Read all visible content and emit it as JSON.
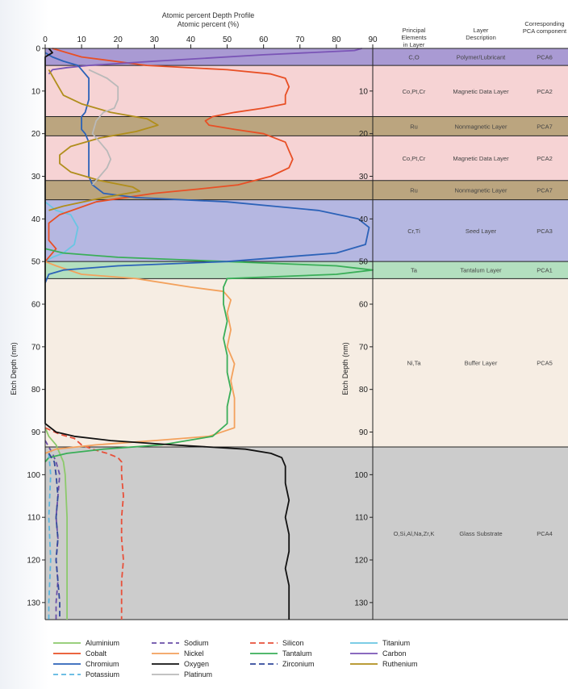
{
  "chart_data": {
    "type": "line",
    "title": "Atomic percent Depth Profile",
    "xlabel": "Atomic percent (%)",
    "ylabel": "Etch Depth (nm)",
    "xlim": [
      0,
      90
    ],
    "ylim": [
      0,
      134
    ],
    "x_ticks": [
      "0",
      "10",
      "20",
      "30",
      "40",
      "50",
      "60",
      "70",
      "80",
      "90"
    ],
    "y_ticks": [
      "0",
      "10",
      "20",
      "30",
      "40",
      "50",
      "60",
      "70",
      "80",
      "90",
      "100",
      "110",
      "120",
      "130"
    ],
    "y_ticks_right": [
      "10",
      "20",
      "30",
      "40",
      "50",
      "60",
      "70",
      "80",
      "90",
      "100",
      "110",
      "120",
      "130"
    ],
    "table_headers": {
      "elements": "Principal Elements in Layer",
      "description": "Layer Description",
      "pca": "Corresponding PCA component"
    },
    "layers": [
      {
        "top": 0,
        "bottom": 4,
        "elements": "C,O",
        "description": "Polymer/Lubricant",
        "pca": "PCA6",
        "color": "#a99ad3"
      },
      {
        "top": 4,
        "bottom": 16,
        "elements": "Co,Pt,Cr",
        "description": "Magnetic Data Layer",
        "pca": "PCA2",
        "color": "#f6d3d4"
      },
      {
        "top": 16,
        "bottom": 20.5,
        "elements": "Ru",
        "description": "Nonmagnetic Layer",
        "pca": "PCA7",
        "color": "#bba57f"
      },
      {
        "top": 20.5,
        "bottom": 31,
        "elements": "Co,Pt,Cr",
        "description": "Magnetic Data Layer",
        "pca": "PCA2",
        "color": "#f6d3d4"
      },
      {
        "top": 31,
        "bottom": 35.5,
        "elements": "Ru",
        "description": "Nonmagnetic Layer",
        "pca": "PCA7",
        "color": "#bba57f"
      },
      {
        "top": 35.5,
        "bottom": 50,
        "elements": "Cr,Ti",
        "description": "Seed Layer",
        "pca": "PCA3",
        "color": "#b5b7e1"
      },
      {
        "top": 50,
        "bottom": 54,
        "elements": "Ta",
        "description": "Tantalum Layer",
        "pca": "PCA1",
        "color": "#b3dfbf"
      },
      {
        "top": 54,
        "bottom": 93.5,
        "elements": "Ni,Ta",
        "description": "Buffer Layer",
        "pca": "PCA5",
        "color": "#f6ede3"
      },
      {
        "top": 93.5,
        "bottom": 134,
        "elements": "O,Si,Al,Na,Zr,K",
        "description": "Glass Substrate",
        "pca": "PCA4",
        "color": "#cccccc"
      }
    ],
    "series": [
      {
        "name": "Aluminium",
        "color": "#8cc96b",
        "dash": "",
        "points": [
          [
            0,
            89
          ],
          [
            1,
            91
          ],
          [
            3,
            93
          ],
          [
            4,
            95
          ],
          [
            5,
            97
          ],
          [
            5.5,
            100
          ],
          [
            6,
            110
          ],
          [
            6,
            120
          ],
          [
            6,
            134
          ]
        ]
      },
      {
        "name": "Sodium",
        "color": "#6a4fa8",
        "dash": "6 4",
        "points": [
          [
            0,
            92
          ],
          [
            2,
            95
          ],
          [
            3,
            97
          ],
          [
            4,
            100
          ],
          [
            3.5,
            105
          ],
          [
            3,
            110
          ],
          [
            3.5,
            115
          ],
          [
            3,
            120
          ],
          [
            3.5,
            125
          ],
          [
            3,
            130
          ],
          [
            3,
            134
          ]
        ]
      },
      {
        "name": "Silicon",
        "color": "#e8503a",
        "dash": "7 4",
        "points": [
          [
            0,
            89
          ],
          [
            4,
            90.5
          ],
          [
            8,
            91.5
          ],
          [
            10,
            93
          ],
          [
            13,
            94
          ],
          [
            17,
            95
          ],
          [
            20,
            96
          ],
          [
            21,
            97
          ],
          [
            21,
            100
          ],
          [
            21.5,
            105
          ],
          [
            21,
            110
          ],
          [
            21,
            115
          ],
          [
            21.5,
            120
          ],
          [
            21,
            125
          ],
          [
            21,
            130
          ],
          [
            21,
            134
          ]
        ]
      },
      {
        "name": "Titanium",
        "color": "#69c6e3",
        "dash": "",
        "points": [
          [
            0,
            36
          ],
          [
            3,
            38
          ],
          [
            7,
            39
          ],
          [
            9,
            42
          ],
          [
            8,
            46
          ],
          [
            5,
            48
          ],
          [
            2,
            49
          ],
          [
            0,
            50
          ]
        ]
      },
      {
        "name": "Cobalt",
        "color": "#e84f25",
        "dash": "",
        "points": [
          [
            2,
            0
          ],
          [
            10,
            2
          ],
          [
            28,
            4
          ],
          [
            50,
            5
          ],
          [
            62,
            6
          ],
          [
            66,
            7
          ],
          [
            67,
            9
          ],
          [
            66,
            11
          ],
          [
            66,
            13
          ],
          [
            60,
            14
          ],
          [
            52,
            15
          ],
          [
            46,
            16
          ],
          [
            44,
            17
          ],
          [
            45,
            18
          ],
          [
            52,
            19
          ],
          [
            60,
            20
          ],
          [
            66,
            22
          ],
          [
            67,
            24
          ],
          [
            68,
            26
          ],
          [
            67,
            28
          ],
          [
            62,
            30
          ],
          [
            53,
            32
          ],
          [
            42,
            33
          ],
          [
            30,
            34
          ],
          [
            14,
            36
          ],
          [
            4,
            39
          ],
          [
            1,
            41
          ],
          [
            1,
            45
          ],
          [
            3,
            47
          ],
          [
            0,
            50
          ]
        ]
      },
      {
        "name": "Nickel",
        "color": "#f3a15c",
        "dash": "",
        "points": [
          [
            0,
            50
          ],
          [
            3,
            51
          ],
          [
            10,
            53
          ],
          [
            25,
            54
          ],
          [
            40,
            56
          ],
          [
            49,
            57
          ],
          [
            51,
            59
          ],
          [
            50,
            62
          ],
          [
            51,
            66
          ],
          [
            50,
            70
          ],
          [
            52,
            74
          ],
          [
            51,
            78
          ],
          [
            52,
            82
          ],
          [
            52,
            86
          ],
          [
            52,
            89
          ],
          [
            45,
            91
          ],
          [
            30,
            92
          ],
          [
            14,
            93
          ],
          [
            3,
            94
          ],
          [
            0,
            95
          ]
        ]
      },
      {
        "name": "Tantalum",
        "color": "#3aae58",
        "dash": "",
        "points": [
          [
            0,
            47
          ],
          [
            5,
            48
          ],
          [
            20,
            49
          ],
          [
            50,
            50
          ],
          [
            80,
            51
          ],
          [
            90,
            52
          ],
          [
            80,
            53
          ],
          [
            50,
            54
          ],
          [
            49,
            56
          ],
          [
            49,
            60
          ],
          [
            50,
            64
          ],
          [
            49,
            68
          ],
          [
            50,
            72
          ],
          [
            50,
            76
          ],
          [
            51,
            80
          ],
          [
            50,
            84
          ],
          [
            50,
            88
          ],
          [
            46,
            91
          ],
          [
            32,
            93
          ],
          [
            16,
            94
          ],
          [
            6,
            95
          ],
          [
            1,
            96
          ],
          [
            0,
            97
          ]
        ]
      },
      {
        "name": "Carbon",
        "color": "#7a54b6",
        "dash": "",
        "points": [
          [
            87,
            0
          ],
          [
            85,
            0.5
          ],
          [
            60,
            1.5
          ],
          [
            30,
            3
          ],
          [
            12,
            4
          ],
          [
            6,
            4.5
          ],
          [
            2,
            5
          ],
          [
            1,
            6
          ]
        ]
      },
      {
        "name": "Chromium",
        "color": "#2c62b8",
        "dash": "",
        "points": [
          [
            0,
            1
          ],
          [
            2,
            2
          ],
          [
            5,
            3
          ],
          [
            9,
            4
          ],
          [
            12,
            7
          ],
          [
            12,
            12
          ],
          [
            11,
            15
          ],
          [
            10,
            16
          ],
          [
            10,
            19
          ],
          [
            11,
            20
          ],
          [
            12,
            22
          ],
          [
            12,
            26
          ],
          [
            12,
            30
          ],
          [
            13,
            32
          ],
          [
            16,
            34
          ],
          [
            25,
            35
          ],
          [
            50,
            36
          ],
          [
            75,
            38
          ],
          [
            86,
            40
          ],
          [
            89,
            42
          ],
          [
            88,
            46
          ],
          [
            80,
            48
          ],
          [
            50,
            50
          ],
          [
            20,
            51
          ],
          [
            5,
            52
          ],
          [
            1,
            53
          ],
          [
            0,
            55
          ]
        ]
      },
      {
        "name": "Ruthenium",
        "color": "#b08e1c",
        "dash": "",
        "points": [
          [
            1,
            5
          ],
          [
            3,
            8
          ],
          [
            5,
            11
          ],
          [
            10,
            13
          ],
          [
            18,
            15
          ],
          [
            28,
            16.5
          ],
          [
            31,
            18
          ],
          [
            25,
            19.5
          ],
          [
            15,
            21
          ],
          [
            7,
            23
          ],
          [
            4,
            25
          ],
          [
            4,
            27
          ],
          [
            7,
            29
          ],
          [
            15,
            31
          ],
          [
            24,
            32.5
          ],
          [
            26,
            33.5
          ],
          [
            16,
            35
          ],
          [
            5,
            37
          ],
          [
            1,
            38
          ]
        ]
      },
      {
        "name": "Potassium",
        "color": "#5ab6e0",
        "dash": "6 4",
        "points": [
          [
            1,
            95
          ],
          [
            1.5,
            100
          ],
          [
            1,
            110
          ],
          [
            1.5,
            120
          ],
          [
            1,
            130
          ],
          [
            1,
            134
          ]
        ]
      },
      {
        "name": "Oxygen",
        "color": "#111111",
        "dash": "",
        "points": [
          [
            1,
            0
          ],
          [
            2,
            1
          ],
          [
            0,
            2
          ],
          [
            0,
            88
          ],
          [
            3,
            90
          ],
          [
            8,
            91
          ],
          [
            18,
            92
          ],
          [
            35,
            93
          ],
          [
            55,
            94
          ],
          [
            62,
            95
          ],
          [
            65,
            96
          ],
          [
            66,
            98
          ],
          [
            66,
            102
          ],
          [
            67,
            106
          ],
          [
            66,
            110
          ],
          [
            67,
            114
          ],
          [
            67,
            118
          ],
          [
            66,
            122
          ],
          [
            67,
            126
          ],
          [
            67,
            130
          ],
          [
            67,
            134
          ]
        ]
      },
      {
        "name": "Zirconium",
        "color": "#31489b",
        "dash": "7 4",
        "points": [
          [
            1,
            95
          ],
          [
            2.5,
            97
          ],
          [
            3,
            100
          ],
          [
            3.5,
            105
          ],
          [
            3,
            110
          ],
          [
            3.5,
            115
          ],
          [
            3,
            120
          ],
          [
            3.5,
            125
          ],
          [
            4,
            130
          ],
          [
            4,
            134
          ]
        ]
      },
      {
        "name": "Platinum",
        "color": "#b9b9b9",
        "dash": "",
        "points": [
          [
            12,
            5
          ],
          [
            17,
            7
          ],
          [
            20,
            9
          ],
          [
            20,
            12
          ],
          [
            19,
            14
          ],
          [
            16,
            15
          ],
          [
            14,
            17
          ],
          [
            13,
            20
          ],
          [
            15,
            22
          ],
          [
            17,
            24
          ],
          [
            18,
            26
          ],
          [
            17,
            28
          ],
          [
            15,
            30
          ],
          [
            13,
            32
          ]
        ]
      }
    ],
    "legend": {
      "placement": "bottom",
      "columns": [
        [
          "Aluminium",
          "Cobalt",
          "Chromium",
          "Potassium"
        ],
        [
          "Sodium",
          "Nickel",
          "Oxygen",
          "Platinum"
        ],
        [
          "Silicon",
          "Tantalum",
          "Zirconium"
        ],
        [
          "Titanium",
          "Carbon",
          "Ruthenium"
        ]
      ]
    }
  }
}
